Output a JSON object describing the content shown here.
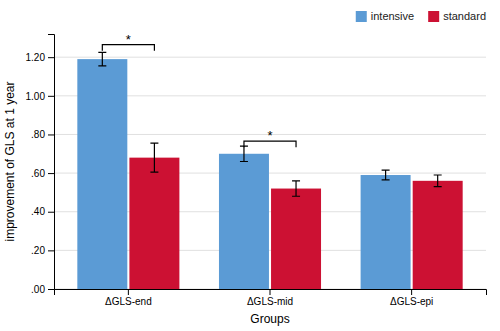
{
  "chart_data": {
    "type": "bar",
    "categories": [
      "ΔGLS-end",
      "ΔGLS-mid",
      "ΔGLS-epi"
    ],
    "series": [
      {
        "name": "intensive",
        "color": "#5B9BD5",
        "values": [
          1.19,
          0.7,
          0.59
        ],
        "errors": [
          0.035,
          0.04,
          0.025
        ]
      },
      {
        "name": "standard",
        "color": "#CC1133",
        "values": [
          0.68,
          0.52,
          0.56
        ],
        "errors": [
          0.075,
          0.04,
          0.03
        ]
      }
    ],
    "xlabel": "Groups",
    "ylabel": "improvement of GLS at 1 year",
    "ylim": [
      0.0,
      1.32
    ],
    "yticks": [
      {
        "value": 0.0,
        "label": ".00"
      },
      {
        "value": 0.2,
        "label": ".20"
      },
      {
        "value": 0.4,
        "label": ".40"
      },
      {
        "value": 0.6,
        "label": ".60"
      },
      {
        "value": 0.8,
        "label": ".80"
      },
      {
        "value": 1.0,
        "label": "1.00"
      },
      {
        "value": 1.2,
        "label": "1.20"
      }
    ],
    "annotations": [
      {
        "text": "*",
        "category": "ΔGLS-end",
        "y": 1.265
      },
      {
        "text": "*",
        "category": "ΔGLS-mid",
        "y": 0.765
      }
    ],
    "grid": true,
    "legend": "upper right"
  }
}
